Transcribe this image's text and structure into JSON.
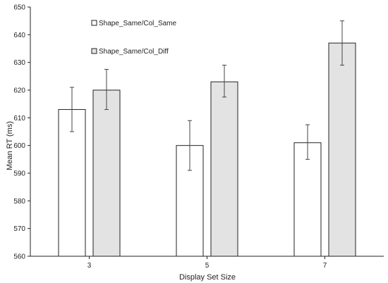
{
  "chart_data": {
    "type": "bar",
    "title": "",
    "xlabel": "Display Set Size",
    "ylabel": "Mean RT (ms)",
    "ylim": [
      560,
      650
    ],
    "yticks": [
      560,
      570,
      580,
      590,
      600,
      610,
      620,
      630,
      640,
      650
    ],
    "categories": [
      "3",
      "5",
      "7"
    ],
    "grid": false,
    "legend_placement": "top-left",
    "series": [
      {
        "name": "Shape_Same/Col_Same",
        "color": "#ffffff",
        "values": [
          613,
          600,
          601
        ],
        "error_low": [
          605,
          591,
          595
        ],
        "error_high": [
          621,
          609,
          607.5
        ]
      },
      {
        "name": "Shape_Same/Col_Diff",
        "color": "#e3e3e3",
        "values": [
          620,
          623,
          637
        ],
        "error_low": [
          613,
          617.5,
          629
        ],
        "error_high": [
          627.5,
          629,
          645
        ]
      }
    ],
    "colors": {
      "bar_stroke": "#222222",
      "axis": "#222222",
      "error_bar": "#444444"
    }
  }
}
